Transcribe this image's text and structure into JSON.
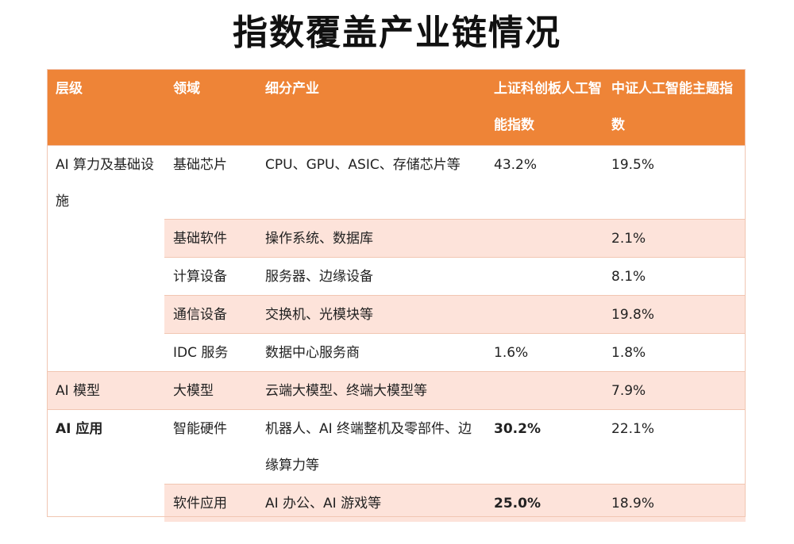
{
  "title": "指数覆盖产业链情况",
  "headers": {
    "level": "层级",
    "domain": "领域",
    "segment": "细分产业",
    "idx1": "上证科创板人工智能指数",
    "idx2": "中证人工智能主题指数"
  },
  "rows": [
    {
      "level": "AI 算力及基础设施",
      "domain": "基础芯片",
      "segment": "CPU、GPU、ASIC、存储芯片等",
      "idx1": "43.2%",
      "idx2": "19.5%"
    },
    {
      "domain": "基础软件",
      "segment": "操作系统、数据库",
      "idx1": "",
      "idx2": "2.1%"
    },
    {
      "domain": "计算设备",
      "segment": "服务器、边缘设备",
      "idx1": "",
      "idx2": "8.1%"
    },
    {
      "domain": "通信设备",
      "segment": "交换机、光模块等",
      "idx1": "",
      "idx2": "19.8%"
    },
    {
      "domain": "IDC 服务",
      "segment": "数据中心服务商",
      "idx1": "1.6%",
      "idx2": "1.8%"
    },
    {
      "level": "AI 模型",
      "domain": "大模型",
      "segment": "云端大模型、终端大模型等",
      "idx1": "",
      "idx2": "7.9%"
    },
    {
      "level": "AI 应用",
      "domain": "智能硬件",
      "segment": "机器人、AI 终端整机及零部件、边缘算力等",
      "idx1": "30.2%",
      "idx2": "22.1%"
    },
    {
      "domain": "软件应用",
      "segment": "AI 办公、AI 游戏等",
      "idx1": "25.0%",
      "idx2": "18.9%"
    }
  ],
  "colors": {
    "header_bg": "#ee8437",
    "row_alt": "#fde3da",
    "border": "#f1c6b2"
  }
}
